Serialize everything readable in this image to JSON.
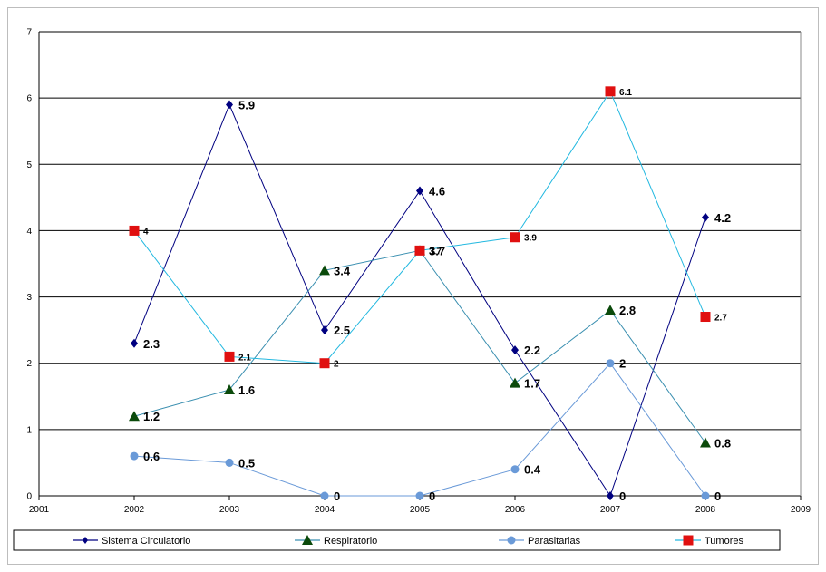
{
  "chart_data": {
    "type": "line",
    "title": "",
    "xlabel": "",
    "ylabel": "",
    "xlim": [
      2001,
      2009
    ],
    "ylim": [
      0,
      7
    ],
    "x_ticks": [
      "2001",
      "2002",
      "2003",
      "2004",
      "2005",
      "2006",
      "2007",
      "2008",
      "2009"
    ],
    "y_ticks": [
      "0",
      "1",
      "2",
      "3",
      "4",
      "5",
      "6",
      "7"
    ],
    "grid": "horizontal",
    "legend": "bottom",
    "series": [
      {
        "name": "Sistema Circulatorio",
        "color": "#000080",
        "marker": "diamond",
        "x": [
          2002,
          2003,
          2004,
          2005,
          2006,
          2007,
          2008
        ],
        "values": [
          2.3,
          5.9,
          2.5,
          4.6,
          2.2,
          0,
          4.2
        ],
        "labels": [
          "2.3",
          "5.9",
          "2.5",
          "4.6",
          "2.2",
          "0",
          "4.2"
        ]
      },
      {
        "name": "Respiratorio",
        "color": "#3a8fb0",
        "marker": "triangle",
        "marker_color": "#0b4a0b",
        "x": [
          2002,
          2003,
          2004,
          2005,
          2006,
          2007,
          2008
        ],
        "values": [
          1.2,
          1.6,
          3.4,
          3.7,
          1.7,
          2.8,
          0.8
        ],
        "labels": [
          "1.2",
          "1.6",
          "3.4",
          "3.7",
          "1.7",
          "2.8",
          "0.8"
        ]
      },
      {
        "name": "Parasitarias",
        "color": "#6a9ad8",
        "marker": "circle",
        "x": [
          2002,
          2003,
          2004,
          2005,
          2006,
          2007,
          2008
        ],
        "values": [
          0.6,
          0.5,
          0,
          0,
          0.4,
          2,
          0
        ],
        "labels": [
          "0.6",
          "0.5",
          "0",
          "0",
          "0.4",
          "2",
          "0"
        ]
      },
      {
        "name": "Tumores",
        "color": "#22b8e0",
        "marker": "square",
        "marker_color": "#e01010",
        "x": [
          2002,
          2003,
          2004,
          2005,
          2006,
          2007,
          2008
        ],
        "values": [
          4,
          2.1,
          2,
          3.7,
          3.9,
          6.1,
          2.7
        ],
        "labels": [
          "4",
          "2.1",
          "2",
          "3.7",
          "3.9",
          "6.1",
          "2.7"
        ]
      }
    ],
    "legend_entries": [
      "Sistema Circulatorio",
      "Respiratorio",
      "Parasitarias",
      "Tumores"
    ]
  }
}
